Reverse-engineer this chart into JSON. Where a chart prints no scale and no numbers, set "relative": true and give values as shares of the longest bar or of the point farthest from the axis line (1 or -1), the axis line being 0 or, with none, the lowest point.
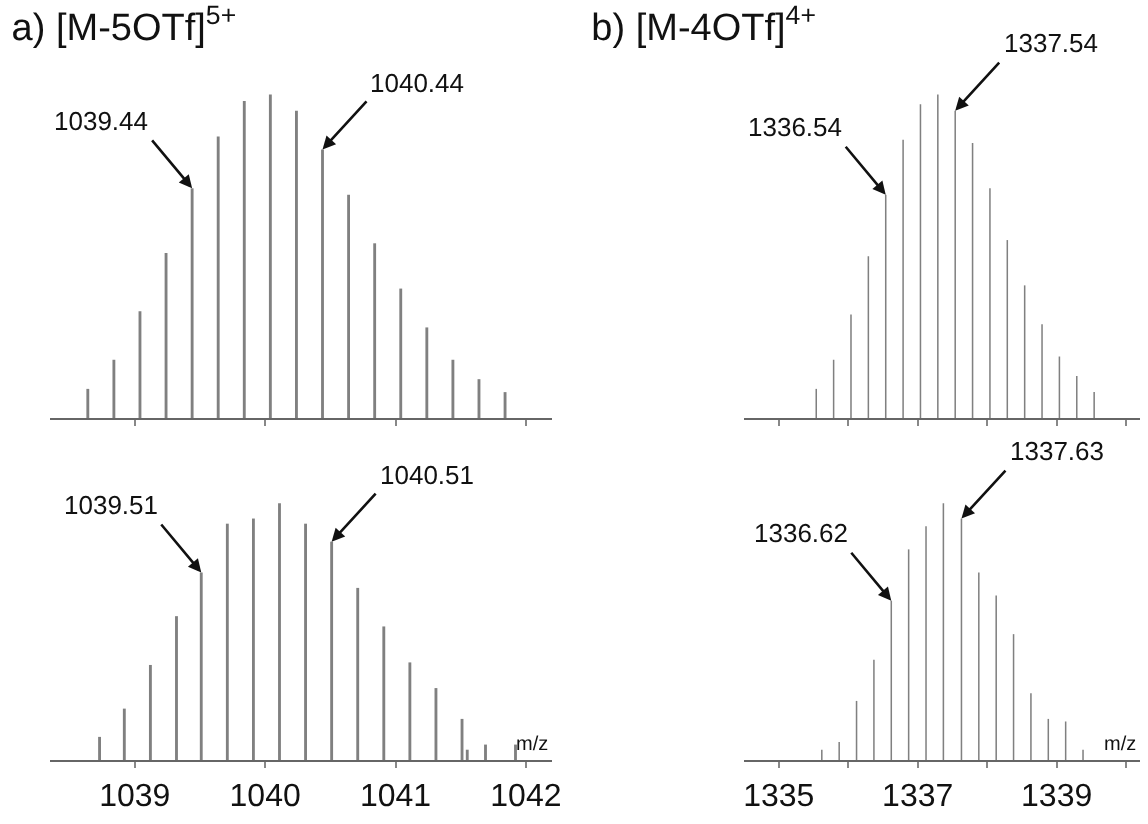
{
  "chart_data": [
    {
      "type": "bar",
      "title": "a) [M-5OTf]$^{5+}$",
      "relative": true,
      "color": "#808080",
      "tick_labels": false,
      "x": [
        1038.64,
        1038.84,
        1039.04,
        1039.24,
        1039.44,
        1039.64,
        1039.84,
        1040.04,
        1040.24,
        1040.44,
        1040.64,
        1040.84,
        1041.04,
        1041.24,
        1041.44,
        1041.64,
        1041.84
      ],
      "values": [
        0.09,
        0.18,
        0.33,
        0.51,
        0.71,
        0.87,
        0.98,
        1.0,
        0.95,
        0.83,
        0.69,
        0.54,
        0.4,
        0.28,
        0.18,
        0.12,
        0.08
      ],
      "xlim": [
        1038.35,
        1042.2
      ],
      "xticks": [
        {
          "value": 1039,
          "label": null
        },
        {
          "value": 1040,
          "label": null
        },
        {
          "value": 1041,
          "label": null
        },
        {
          "value": 1042,
          "label": null
        }
      ],
      "annotations": [
        {
          "text": "1039.44",
          "x": 1039.44,
          "y": 0.71
        },
        {
          "text": "1040.44",
          "x": 1040.44,
          "y": 0.83
        }
      ]
    },
    {
      "type": "bar",
      "title": "b) [M-4OTf]$^{4+}$",
      "relative": true,
      "color": "#808080",
      "tick_labels": false,
      "x": [
        1335.54,
        1335.79,
        1336.04,
        1336.29,
        1336.54,
        1336.79,
        1337.04,
        1337.29,
        1337.54,
        1337.79,
        1338.04,
        1338.29,
        1338.54,
        1338.79,
        1339.04,
        1339.29,
        1339.54
      ],
      "values": [
        0.09,
        0.18,
        0.32,
        0.5,
        0.69,
        0.86,
        0.97,
        1.0,
        0.95,
        0.85,
        0.71,
        0.55,
        0.41,
        0.29,
        0.19,
        0.13,
        0.08
      ],
      "xlim": [
        1334.5,
        1340.2
      ],
      "xticks": [
        {
          "value": 1335,
          "label": null
        },
        {
          "value": 1336,
          "label": null
        },
        {
          "value": 1337,
          "label": null
        },
        {
          "value": 1338,
          "label": null
        },
        {
          "value": 1339,
          "label": null
        },
        {
          "value": 1340,
          "label": null
        }
      ],
      "annotations": [
        {
          "text": "1336.54",
          "x": 1336.54,
          "y": 0.69
        },
        {
          "text": "1337.54",
          "x": 1337.54,
          "y": 0.95
        }
      ]
    },
    {
      "type": "bar",
      "relative": true,
      "color": "#808080",
      "tick_labels": "x",
      "xlabel": "m/z",
      "x": [
        1038.73,
        1038.92,
        1039.12,
        1039.32,
        1039.51,
        1039.71,
        1039.91,
        1040.11,
        1040.31,
        1040.51,
        1040.71,
        1040.91,
        1041.11,
        1041.31,
        1041.51,
        1041.55,
        1041.69,
        1041.92
      ],
      "values": [
        0.09,
        0.2,
        0.37,
        0.56,
        0.73,
        0.92,
        0.94,
        1.0,
        0.92,
        0.85,
        0.67,
        0.52,
        0.38,
        0.28,
        0.16,
        0.04,
        0.06,
        0.06
      ],
      "xlim": [
        1038.35,
        1042.2
      ],
      "xticks": [
        1039,
        1040,
        1041,
        1042
      ],
      "annotations": [
        {
          "text": "1039.51",
          "x": 1039.51,
          "y": 0.73
        },
        {
          "text": "1040.51",
          "x": 1040.51,
          "y": 0.85
        }
      ]
    },
    {
      "type": "bar",
      "relative": true,
      "color": "#808080",
      "tick_labels": "x",
      "xlabel": "m/z",
      "x": [
        1335.62,
        1335.87,
        1336.12,
        1336.37,
        1336.62,
        1336.87,
        1337.12,
        1337.37,
        1337.63,
        1337.88,
        1338.13,
        1338.38,
        1338.63,
        1338.88,
        1339.13,
        1339.38
      ],
      "values": [
        0.04,
        0.07,
        0.23,
        0.39,
        0.62,
        0.82,
        0.91,
        1.0,
        0.94,
        0.73,
        0.64,
        0.49,
        0.26,
        0.16,
        0.15,
        0.04
      ],
      "xlim": [
        1334.5,
        1340.2
      ],
      "xticks": [
        1335,
        {
          "value": 1336,
          "label": null
        },
        1337,
        {
          "value": 1338,
          "label": null
        },
        1339,
        {
          "value": 1340,
          "label": null
        }
      ],
      "annotations": [
        {
          "text": "1336.62",
          "x": 1336.62,
          "y": 0.62
        },
        {
          "text": "1337.63",
          "x": 1337.63,
          "y": 0.94
        }
      ]
    }
  ]
}
